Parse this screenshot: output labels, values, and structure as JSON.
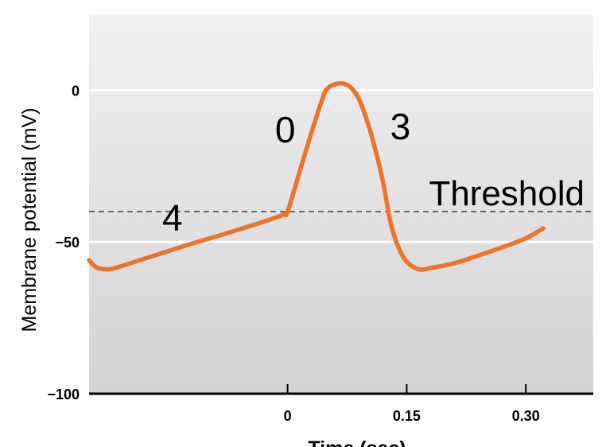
{
  "chart_data": {
    "type": "line",
    "title": "",
    "xlabel": "Time (sec)",
    "ylabel": "Membrane potential (mV)",
    "xlim": [
      -0.25,
      0.385
    ],
    "ylim": [
      -100,
      25
    ],
    "x_ticks": [
      {
        "value": 0,
        "label": "0"
      },
      {
        "value": 0.15,
        "label": "0.15"
      },
      {
        "value": 0.3,
        "label": "0.30"
      }
    ],
    "y_ticks": [
      {
        "value": 0,
        "label": "0"
      },
      {
        "value": -50,
        "label": "−50"
      },
      {
        "value": -100,
        "label": "−100"
      }
    ],
    "grid": true,
    "threshold": {
      "value": -40,
      "label": "Threshold"
    },
    "phase_labels": [
      {
        "label": "4",
        "x": -0.145,
        "y": -42
      },
      {
        "label": "0",
        "x": -0.003,
        "y": -13
      },
      {
        "label": "3",
        "x": 0.142,
        "y": -12
      }
    ],
    "series": [
      {
        "color": "#ef7427",
        "points": [
          [
            -0.25,
            -56
          ],
          [
            -0.24,
            -58.5
          ],
          [
            -0.225,
            -59
          ],
          [
            -0.21,
            -58
          ],
          [
            -0.18,
            -55.5
          ],
          [
            -0.15,
            -53
          ],
          [
            -0.12,
            -50.5
          ],
          [
            -0.09,
            -48.2
          ],
          [
            -0.06,
            -45.8
          ],
          [
            -0.03,
            -43.3
          ],
          [
            -0.005,
            -41
          ],
          [
            0,
            -40
          ],
          [
            0.015,
            -27
          ],
          [
            0.03,
            -14
          ],
          [
            0.045,
            -2
          ],
          [
            0.05,
            0.5
          ],
          [
            0.06,
            2
          ],
          [
            0.07,
            2.2
          ],
          [
            0.08,
            0.8
          ],
          [
            0.09,
            -3
          ],
          [
            0.1,
            -10
          ],
          [
            0.11,
            -19
          ],
          [
            0.12,
            -30
          ],
          [
            0.13,
            -44
          ],
          [
            0.14,
            -52
          ],
          [
            0.15,
            -56.5
          ],
          [
            0.165,
            -59
          ],
          [
            0.18,
            -58.6
          ],
          [
            0.21,
            -57
          ],
          [
            0.24,
            -54.5
          ],
          [
            0.27,
            -51.8
          ],
          [
            0.3,
            -48.8
          ],
          [
            0.322,
            -45.5
          ]
        ]
      }
    ]
  }
}
